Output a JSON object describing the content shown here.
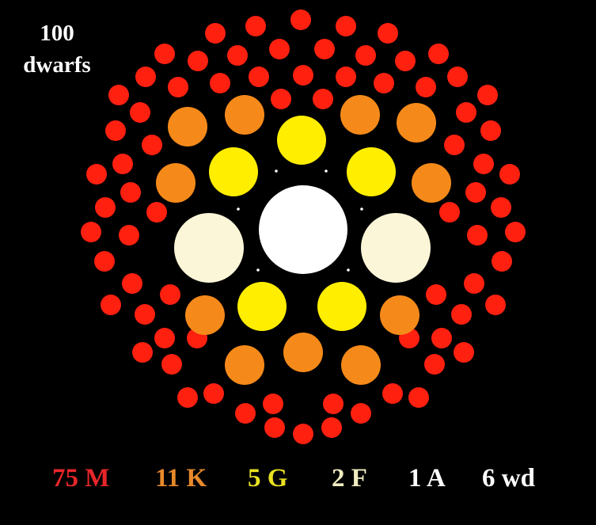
{
  "title": {
    "line1": "100",
    "line2": "dwarfs"
  },
  "legend": [
    {
      "count": "75",
      "type": "M",
      "color": "#e8262a"
    },
    {
      "count": "11",
      "type": "K",
      "color": "#e8892a"
    },
    {
      "count": "5",
      "type": "G",
      "color": "#e8e020"
    },
    {
      "count": "2",
      "type": "F",
      "color": "#f0ecc0"
    },
    {
      "count": "1",
      "type": "A",
      "color": "#ffffff"
    },
    {
      "count": "6",
      "type": "wd",
      "color": "#ffffff"
    }
  ],
  "star_colors": {
    "M": "#ff2010",
    "K": "#f58a1a",
    "G": "#ffee00",
    "F": "#fbf6d8",
    "A": "#ffffff",
    "wd": "#ffffff"
  }
}
